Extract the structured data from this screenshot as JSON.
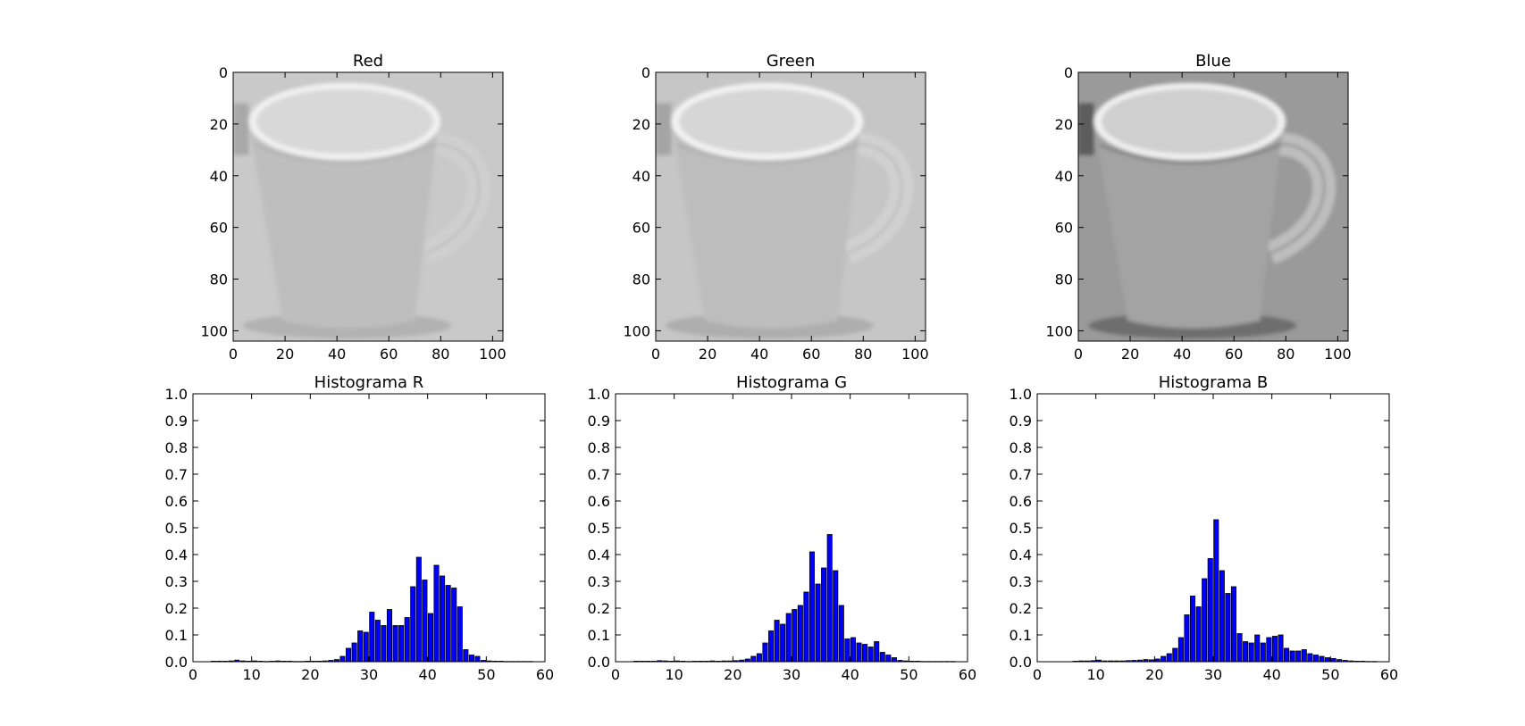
{
  "figure": {
    "background": "#ffffff",
    "bar_color": "#0000ff",
    "bar_edge_color": "#000000"
  },
  "chart_data": [
    {
      "type": "heatmap",
      "title": "Red",
      "image": "grayscale coffee mug (red channel)",
      "xlim": [
        0,
        104
      ],
      "ylim": [
        104,
        0
      ],
      "xticks": [
        0,
        20,
        40,
        60,
        80,
        100
      ],
      "yticks": [
        0,
        20,
        40,
        60,
        80,
        100
      ],
      "tone": {
        "bg": "#c9c9c9",
        "mug": "#bebebe",
        "inner": "#d8d8d8",
        "rim": "#f0f0f0",
        "shadow": "#a8a8a8",
        "handle": "#cfcfcf"
      }
    },
    {
      "type": "heatmap",
      "title": "Green",
      "image": "grayscale coffee mug (green channel)",
      "xlim": [
        0,
        104
      ],
      "ylim": [
        104,
        0
      ],
      "xticks": [
        0,
        20,
        40,
        60,
        80,
        100
      ],
      "yticks": [
        0,
        20,
        40,
        60,
        80,
        100
      ],
      "tone": {
        "bg": "#c6c6c6",
        "mug": "#bdbdbd",
        "inner": "#d6d6d6",
        "rim": "#f2f2f2",
        "shadow": "#a4a4a4",
        "handle": "#d0d0d0"
      }
    },
    {
      "type": "heatmap",
      "title": "Blue",
      "image": "grayscale coffee mug (blue channel)",
      "xlim": [
        0,
        104
      ],
      "ylim": [
        104,
        0
      ],
      "xticks": [
        0,
        20,
        40,
        60,
        80,
        100
      ],
      "yticks": [
        0,
        20,
        40,
        60,
        80,
        100
      ],
      "tone": {
        "bg": "#9a9a9a",
        "mug": "#a3a3a3",
        "inner": "#cfcfcf",
        "rim": "#efefef",
        "shadow": "#5c5c5c",
        "handle": "#bdbdbd"
      }
    },
    {
      "type": "bar",
      "title": "Histograma R",
      "xlim": [
        0,
        60
      ],
      "ylim": [
        0,
        1.0
      ],
      "xticks": [
        0,
        10,
        20,
        30,
        40,
        50,
        60
      ],
      "yticks": [
        0.0,
        0.1,
        0.2,
        0.3,
        0.4,
        0.5,
        0.6,
        0.7,
        0.8,
        0.9,
        1.0
      ],
      "x": [
        3,
        4,
        5,
        6,
        7,
        8,
        9,
        10,
        11,
        12,
        13,
        14,
        15,
        16,
        17,
        18,
        19,
        20,
        21,
        22,
        23,
        24,
        25,
        26,
        27,
        28,
        29,
        30,
        31,
        32,
        33,
        34,
        35,
        36,
        37,
        38,
        39,
        40,
        41,
        42,
        43,
        44,
        45,
        46,
        47,
        48,
        49,
        50,
        51,
        52,
        53,
        54,
        55,
        56,
        57
      ],
      "values": [
        0.002,
        0.002,
        0.002,
        0.003,
        0.006,
        0.003,
        0.002,
        0.003,
        0.002,
        0.001,
        0.002,
        0.003,
        0.002,
        0.002,
        0.001,
        0.001,
        0.002,
        0.002,
        0.002,
        0.003,
        0.005,
        0.008,
        0.02,
        0.05,
        0.07,
        0.115,
        0.11,
        0.185,
        0.155,
        0.135,
        0.195,
        0.135,
        0.135,
        0.165,
        0.28,
        0.39,
        0.305,
        0.18,
        0.36,
        0.32,
        0.285,
        0.275,
        0.205,
        0.045,
        0.025,
        0.02,
        0.005,
        0.003,
        0.002,
        0.002,
        0.001,
        0.001,
        0.001,
        0.001,
        0.001
      ]
    },
    {
      "type": "bar",
      "title": "Histograma G",
      "xlim": [
        0,
        60
      ],
      "ylim": [
        0,
        1.0
      ],
      "xticks": [
        0,
        10,
        20,
        30,
        40,
        50,
        60
      ],
      "yticks": [
        0.0,
        0.1,
        0.2,
        0.3,
        0.4,
        0.5,
        0.6,
        0.7,
        0.8,
        0.9,
        1.0
      ],
      "x": [
        3,
        4,
        5,
        6,
        7,
        8,
        9,
        10,
        11,
        12,
        13,
        14,
        15,
        16,
        17,
        18,
        19,
        20,
        21,
        22,
        23,
        24,
        25,
        26,
        27,
        28,
        29,
        30,
        31,
        32,
        33,
        34,
        35,
        36,
        37,
        38,
        39,
        40,
        41,
        42,
        43,
        44,
        45,
        46,
        47,
        48,
        49,
        50,
        51,
        52,
        53,
        54,
        55,
        56,
        57
      ],
      "values": [
        0.002,
        0.002,
        0.002,
        0.002,
        0.004,
        0.003,
        0.002,
        0.003,
        0.002,
        0.001,
        0.002,
        0.002,
        0.002,
        0.003,
        0.002,
        0.003,
        0.003,
        0.004,
        0.006,
        0.01,
        0.02,
        0.03,
        0.07,
        0.115,
        0.155,
        0.14,
        0.18,
        0.195,
        0.21,
        0.26,
        0.41,
        0.29,
        0.35,
        0.475,
        0.34,
        0.21,
        0.085,
        0.09,
        0.07,
        0.065,
        0.055,
        0.075,
        0.035,
        0.025,
        0.015,
        0.005,
        0.003,
        0.002,
        0.002,
        0.001,
        0.001,
        0.001,
        0.001,
        0.001,
        0.001
      ]
    },
    {
      "type": "bar",
      "title": "Histograma B",
      "xlim": [
        0,
        60
      ],
      "ylim": [
        0,
        1.0
      ],
      "xticks": [
        0,
        10,
        20,
        30,
        40,
        50,
        60
      ],
      "yticks": [
        0.0,
        0.1,
        0.2,
        0.3,
        0.4,
        0.5,
        0.6,
        0.7,
        0.8,
        0.9,
        1.0
      ],
      "x": [
        6,
        7,
        8,
        9,
        10,
        11,
        12,
        13,
        14,
        15,
        16,
        17,
        18,
        19,
        20,
        21,
        22,
        23,
        24,
        25,
        26,
        27,
        28,
        29,
        30,
        31,
        32,
        33,
        34,
        35,
        36,
        37,
        38,
        39,
        40,
        41,
        42,
        43,
        44,
        45,
        46,
        47,
        48,
        49,
        50,
        51,
        52,
        53,
        54,
        55,
        56,
        57
      ],
      "values": [
        0.002,
        0.003,
        0.003,
        0.004,
        0.006,
        0.003,
        0.003,
        0.003,
        0.003,
        0.004,
        0.005,
        0.006,
        0.008,
        0.007,
        0.01,
        0.02,
        0.03,
        0.05,
        0.09,
        0.175,
        0.245,
        0.205,
        0.31,
        0.385,
        0.53,
        0.34,
        0.255,
        0.28,
        0.105,
        0.075,
        0.07,
        0.1,
        0.07,
        0.09,
        0.095,
        0.1,
        0.05,
        0.04,
        0.04,
        0.045,
        0.03,
        0.025,
        0.02,
        0.015,
        0.012,
        0.008,
        0.005,
        0.003,
        0.002,
        0.002,
        0.001,
        0.001
      ]
    }
  ]
}
